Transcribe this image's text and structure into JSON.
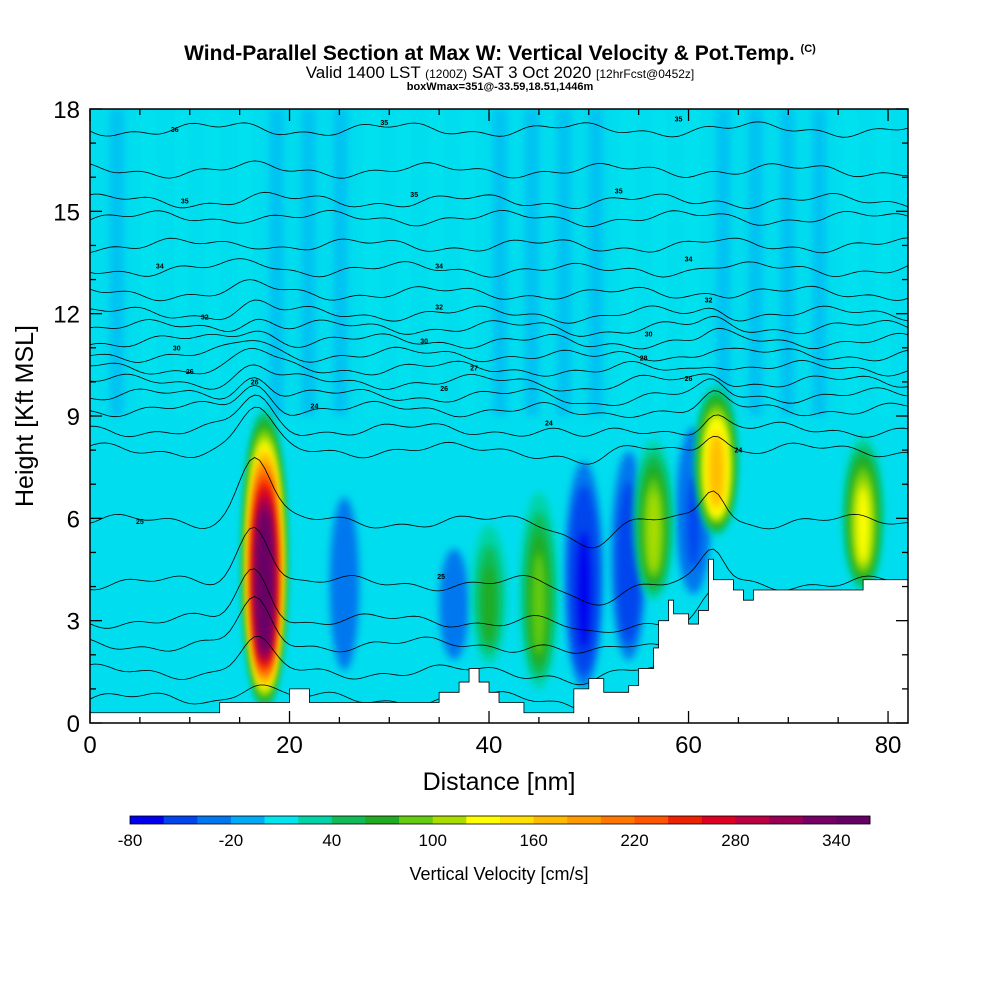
{
  "header": {
    "title": "Wind-Parallel Section at Max W: Vertical Velocity & Pot.Temp.",
    "copyright_mark": "(C)",
    "valid_prefix": "Valid 1400 LST",
    "valid_utc": "(1200Z)",
    "valid_date": "SAT 3 Oct 2020",
    "forecast_info": "[12hrFcst@0452z]",
    "box_info": "boxWmax=351@-33.59,18.51,1446m"
  },
  "chart_data": {
    "type": "heatmap",
    "subtype": "cross-section contour (vertical velocity fill + potential temperature isolines)",
    "xlabel": "Distance [nm]",
    "ylabel": "Height [Kft MSL]",
    "xlim": [
      0,
      82
    ],
    "ylim": [
      0,
      18
    ],
    "x_ticks": [
      0,
      20,
      40,
      60,
      80
    ],
    "y_ticks": [
      0,
      3,
      6,
      9,
      12,
      15,
      18
    ],
    "colorbar": {
      "label": "Vertical Velocity [cm/s]",
      "levels": [
        -80,
        -60,
        -40,
        -20,
        0,
        20,
        40,
        60,
        80,
        100,
        120,
        140,
        160,
        180,
        200,
        220,
        240,
        260,
        280,
        300,
        320,
        340,
        360
      ],
      "tick_labels": [
        "-80",
        "-20",
        "40",
        "100",
        "160",
        "220",
        "280",
        "340"
      ],
      "colors": [
        "#0000ee",
        "#0044ee",
        "#0077ee",
        "#00aaf5",
        "#00e5f0",
        "#00d4a8",
        "#11bb55",
        "#22aa22",
        "#66cc11",
        "#aadd00",
        "#ffff00",
        "#ffe000",
        "#ffbb00",
        "#ff9900",
        "#ff7700",
        "#ff5500",
        "#ee2200",
        "#dd0022",
        "#bb0044",
        "#990055",
        "#770066",
        "#660066"
      ]
    },
    "updrafts": [
      {
        "x": 17.5,
        "z_bottom": 0.5,
        "z_top": 9.6,
        "w_max": 340
      },
      {
        "x": 40,
        "z_bottom": 1.5,
        "z_top": 6.5,
        "w_max": 60
      },
      {
        "x": 45,
        "z_bottom": 0.8,
        "z_top": 7.5,
        "w_max": 80
      },
      {
        "x": 56.5,
        "z_bottom": 3.5,
        "z_top": 8.8,
        "w_max": 100
      },
      {
        "x": 62.8,
        "z_bottom": 5.5,
        "z_top": 10.2,
        "w_max": 170
      },
      {
        "x": 77.5,
        "z_bottom": 3.8,
        "z_top": 8.8,
        "w_max": 120
      }
    ],
    "downdrafts": [
      {
        "x": 25.5,
        "z_bottom": 1,
        "z_top": 8,
        "w_min": -40
      },
      {
        "x": 36.5,
        "z_bottom": 1.5,
        "z_top": 6,
        "w_min": -40
      },
      {
        "x": 49.5,
        "z_bottom": 0.8,
        "z_top": 8.5,
        "w_min": -70
      },
      {
        "x": 54,
        "z_bottom": 1.5,
        "z_top": 9,
        "w_min": -60
      },
      {
        "x": 60.5,
        "z_bottom": 3.5,
        "z_top": 9.5,
        "w_min": -50
      }
    ],
    "terrain": {
      "x": [
        0,
        13,
        13,
        20,
        20,
        22,
        22,
        35,
        35,
        37,
        37,
        38,
        38,
        39,
        39,
        40,
        40,
        41,
        41,
        43.5,
        43.5,
        48.5,
        48.5,
        50,
        50,
        51.5,
        51.5,
        54,
        54,
        55,
        55,
        56.5,
        56.5,
        57,
        57,
        58,
        58,
        58.5,
        58.5,
        60,
        60,
        61,
        61,
        62,
        62,
        62.5,
        62.5,
        64.5,
        64.5,
        65.5,
        65.5,
        66.5,
        66.5,
        77.5,
        77.5,
        80,
        80,
        82
      ],
      "z": [
        0.3,
        0.3,
        0.6,
        0.6,
        1.0,
        1.0,
        0.6,
        0.6,
        0.9,
        0.9,
        1.2,
        1.2,
        1.6,
        1.6,
        1.2,
        1.2,
        0.9,
        0.9,
        0.6,
        0.6,
        0.3,
        0.3,
        1.0,
        1.0,
        1.3,
        1.3,
        0.9,
        0.9,
        1.1,
        1.1,
        1.6,
        1.6,
        2.2,
        2.2,
        3.0,
        3.0,
        3.6,
        3.6,
        3.2,
        3.2,
        2.9,
        2.9,
        3.3,
        3.3,
        4.8,
        4.8,
        4.2,
        4.2,
        3.9,
        3.9,
        3.6,
        3.6,
        3.9,
        3.9,
        4.2,
        4.2,
        4.2,
        4.2
      ]
    },
    "theta_contours": {
      "lines": [
        {
          "z0": 0.7,
          "bump": 0.5
        },
        {
          "z0": 1.5,
          "bump": 0.9
        },
        {
          "z0": 2.3,
          "bump": 1.2
        },
        {
          "z0": 3.0,
          "bump": 1.5
        },
        {
          "z0": 4.1,
          "bump": 1.8
        },
        {
          "z0": 5.9,
          "bump": 2.0
        },
        {
          "z0": 8.0,
          "bump": 1.2
        },
        {
          "z0": 8.6,
          "bump": 0.9
        },
        {
          "z0": 9.2,
          "bump": 0.7
        },
        {
          "z0": 9.6,
          "bump": 0.6
        },
        {
          "z0": 10.0,
          "bump": 0.5
        },
        {
          "z0": 10.4,
          "bump": 0.5
        },
        {
          "z0": 10.8,
          "bump": 0.4
        },
        {
          "z0": 11.2,
          "bump": 0.4
        },
        {
          "z0": 11.6,
          "bump": 0.3
        },
        {
          "z0": 12.0,
          "bump": 0.3
        },
        {
          "z0": 12.6,
          "bump": 0.2
        },
        {
          "z0": 13.3,
          "bump": 0.2
        },
        {
          "z0": 14.0,
          "bump": 0.1
        },
        {
          "z0": 14.8,
          "bump": 0.1
        },
        {
          "z0": 15.3,
          "bump": 0.1
        },
        {
          "z0": 16.2,
          "bump": 0.05
        },
        {
          "z0": 17.4,
          "bump": 0.05
        }
      ],
      "labels": [
        {
          "text": "36",
          "x": 8.5,
          "z": 17.4
        },
        {
          "text": "35",
          "x": 29.5,
          "z": 17.6
        },
        {
          "text": "35",
          "x": 59,
          "z": 17.7
        },
        {
          "text": "35",
          "x": 9.5,
          "z": 15.3
        },
        {
          "text": "35",
          "x": 32.5,
          "z": 15.5
        },
        {
          "text": "35",
          "x": 53,
          "z": 15.6
        },
        {
          "text": "34",
          "x": 7,
          "z": 13.4
        },
        {
          "text": "34",
          "x": 35,
          "z": 13.4
        },
        {
          "text": "34",
          "x": 60,
          "z": 13.6
        },
        {
          "text": "32",
          "x": 35,
          "z": 12.2
        },
        {
          "text": "32",
          "x": 62,
          "z": 12.4
        },
        {
          "text": "32",
          "x": 11.5,
          "z": 11.9
        },
        {
          "text": "30",
          "x": 33.5,
          "z": 11.2
        },
        {
          "text": "30",
          "x": 56,
          "z": 11.4
        },
        {
          "text": "30",
          "x": 8.7,
          "z": 11.0
        },
        {
          "text": "28",
          "x": 55.5,
          "z": 10.7
        },
        {
          "text": "27",
          "x": 38.5,
          "z": 10.4
        },
        {
          "text": "26",
          "x": 10,
          "z": 10.3
        },
        {
          "text": "26",
          "x": 60,
          "z": 10.1
        },
        {
          "text": "26",
          "x": 16.5,
          "z": 10.0
        },
        {
          "text": "26",
          "x": 35.5,
          "z": 9.8
        },
        {
          "text": "24",
          "x": 22.5,
          "z": 9.3
        },
        {
          "text": "24",
          "x": 46,
          "z": 8.8
        },
        {
          "text": "24",
          "x": 65,
          "z": 8.0
        },
        {
          "text": "25",
          "x": 5,
          "z": 5.9
        },
        {
          "text": "25",
          "x": 35.2,
          "z": 4.3
        }
      ]
    }
  }
}
